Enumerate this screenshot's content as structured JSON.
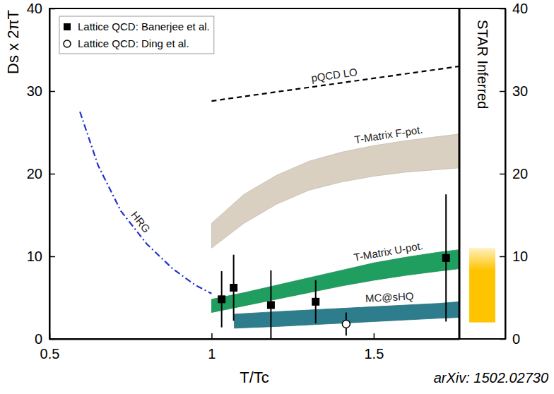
{
  "chart_data": {
    "type": "scatter",
    "x_label": "T/Tc",
    "y_label": "Ds x 2πT",
    "source": "arXiv: 1502.02730",
    "xlim": [
      0.5,
      1.764
    ],
    "ylim": [
      0,
      40
    ],
    "xticks": [
      0.5,
      1,
      1.5
    ],
    "yticks": [
      0,
      10,
      20,
      30,
      40
    ],
    "legend": "upper left",
    "series": [
      {
        "name": "T-Matrix F-pot.",
        "type": "band",
        "color": "#d9d0c1",
        "x": [
          1.0,
          1.1,
          1.2,
          1.3,
          1.4,
          1.5,
          1.6,
          1.7,
          1.764
        ],
        "low": [
          11,
          14,
          16.3,
          18,
          19,
          19.7,
          20.2,
          20.5,
          20.7
        ],
        "high": [
          14,
          17.5,
          19.8,
          21.5,
          22.6,
          23.4,
          24,
          24.5,
          24.8
        ]
      },
      {
        "name": "T-Matrix U-pot.",
        "type": "band",
        "color": "#1f9e5f",
        "x": [
          1.0,
          1.1,
          1.2,
          1.3,
          1.4,
          1.5,
          1.6,
          1.7,
          1.764
        ],
        "low": [
          3.2,
          4,
          4.8,
          5.6,
          6.4,
          7.1,
          7.7,
          8.2,
          8.5
        ],
        "high": [
          4.8,
          5.6,
          6.5,
          7.4,
          8.3,
          9.2,
          9.9,
          10.5,
          10.8
        ]
      },
      {
        "name": "MC@sHQ",
        "type": "band",
        "color": "#2e7d8c",
        "x": [
          1.07,
          1.2,
          1.3,
          1.4,
          1.5,
          1.6,
          1.7,
          1.764
        ],
        "low": [
          1.3,
          1.5,
          1.7,
          1.9,
          2.1,
          2.3,
          2.5,
          2.6
        ],
        "high": [
          3.0,
          3.3,
          3.5,
          3.7,
          3.9,
          4.1,
          4.3,
          4.5
        ]
      },
      {
        "name": "HRG",
        "type": "line",
        "line_style": "dashdot",
        "color": "#2233cc",
        "x": [
          0.594,
          0.65,
          0.72,
          0.8,
          0.88,
          0.95,
          1.0
        ],
        "values": [
          27.5,
          21,
          15.5,
          11.5,
          8.5,
          6.5,
          5.5
        ]
      },
      {
        "name": "pQCD LO",
        "type": "line",
        "line_style": "dashed",
        "color": "#000000",
        "x": [
          1.0,
          1.764
        ],
        "values": [
          28.8,
          33
        ]
      },
      {
        "name": "Lattice QCD: Banerjee et al.",
        "type": "scatter",
        "marker": "square",
        "color": "#000000",
        "x": [
          1.031,
          1.068,
          1.183,
          1.321,
          1.723
        ],
        "values": [
          4.8,
          6.2,
          4.1,
          4.5,
          9.8
        ],
        "errors": [
          3.4,
          4.0,
          4.2,
          2.6,
          7.7
        ]
      },
      {
        "name": "Lattice QCD: Ding et al.",
        "type": "scatter",
        "marker": "open_circle",
        "color": "#000000",
        "x": [
          1.415
        ],
        "values": [
          1.8
        ],
        "errors": [
          1.4
        ]
      }
    ],
    "panel": {
      "label": "STAR Inferred",
      "low": 2,
      "high": 11,
      "color": "#ffc400"
    }
  }
}
